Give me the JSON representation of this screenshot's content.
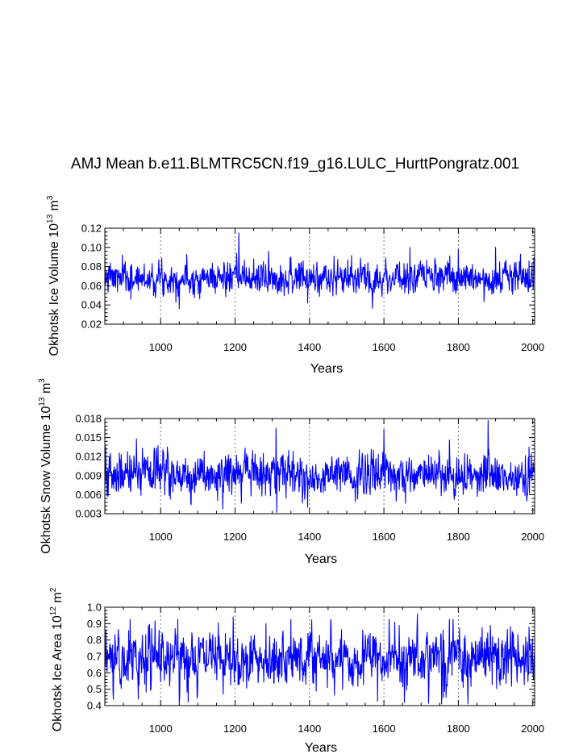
{
  "figure_title": "AMJ Mean b.e11.BLMTRC5CN.f19_g16.LULC_HurttPongratz.001",
  "chart_data": [
    {
      "type": "line",
      "title": "",
      "xlabel": "Years",
      "ylabel": "Okhotsk Ice Volume 10",
      "ylabel_exp": "13",
      "ylabel_unit": "m",
      "ylabel_unit_exp": "3",
      "xlim": [
        850,
        2005
      ],
      "ylim": [
        0.02,
        0.12
      ],
      "xticks": [
        1000,
        1200,
        1400,
        1600,
        1800,
        2000
      ],
      "xtick_labels": [
        "1000",
        "1200",
        "1400",
        "1600",
        "1800",
        "2000"
      ],
      "yticks": [
        0.02,
        0.04,
        0.06,
        0.08,
        0.1,
        0.12
      ],
      "ytick_labels": [
        "0.02",
        "0.04",
        "0.06",
        "0.08",
        "0.10",
        "0.12"
      ],
      "gridlines_x": [
        1000,
        1200,
        1400,
        1600,
        1800
      ],
      "series": [
        {
          "name": "Okhotsk Ice Volume",
          "color": "#0000ff",
          "x_start": 850,
          "x_end": 2005,
          "mean": 0.068,
          "spread": 0.008,
          "lo": 0.036,
          "hi": 0.115,
          "seed": 7,
          "keypoints": [
            [
              857,
              0.074
            ],
            [
              920,
              0.046
            ],
            [
              1050,
              0.036
            ],
            [
              1210,
              0.115
            ],
            [
              1290,
              0.096
            ],
            [
              1350,
              0.09
            ],
            [
              1395,
              0.042
            ],
            [
              1600,
              0.072
            ],
            [
              1670,
              0.1
            ],
            [
              1800,
              0.098
            ],
            [
              1900,
              0.1
            ],
            [
              1990,
              0.086
            ]
          ]
        }
      ]
    },
    {
      "type": "line",
      "title": "",
      "xlabel": "Years",
      "ylabel": "Okhotsk Snow Volume 10",
      "ylabel_exp": "13",
      "ylabel_unit": "m",
      "ylabel_unit_exp": "3",
      "xlim": [
        850,
        2005
      ],
      "ylim": [
        0.003,
        0.018
      ],
      "xticks": [
        1000,
        1200,
        1400,
        1600,
        1800,
        2000
      ],
      "xtick_labels": [
        "1000",
        "1200",
        "1400",
        "1600",
        "1800",
        "2000"
      ],
      "yticks": [
        0.003,
        0.006,
        0.009,
        0.012,
        0.015,
        0.018
      ],
      "ytick_labels": [
        "0.003",
        "0.006",
        "0.009",
        "0.012",
        "0.015",
        "0.018"
      ],
      "gridlines_x": [
        1000,
        1200,
        1400,
        1600,
        1800
      ],
      "series": [
        {
          "name": "Okhotsk Snow Volume",
          "color": "#0000ff",
          "x_start": 850,
          "x_end": 2005,
          "mean": 0.0092,
          "spread": 0.0017,
          "lo": 0.0032,
          "hi": 0.0178,
          "seed": 19,
          "keypoints": [
            [
              852,
              0.0135
            ],
            [
              935,
              0.0148
            ],
            [
              1310,
              0.0165
            ],
            [
              1312,
              0.0032
            ],
            [
              1395,
              0.004
            ],
            [
              1600,
              0.0163
            ],
            [
              1880,
              0.0177
            ],
            [
              1990,
              0.0135
            ]
          ]
        }
      ]
    },
    {
      "type": "line",
      "title": "",
      "xlabel": "Years",
      "ylabel": "Okhotsk Ice Area 10",
      "ylabel_exp": "12",
      "ylabel_unit": "m",
      "ylabel_unit_exp": "2",
      "xlim": [
        850,
        2005
      ],
      "ylim": [
        0.4,
        1.0
      ],
      "xticks": [
        1000,
        1200,
        1400,
        1600,
        1800,
        2000
      ],
      "xtick_labels": [
        "1000",
        "1200",
        "1400",
        "1600",
        "1800",
        "2000"
      ],
      "yticks": [
        0.4,
        0.5,
        0.6,
        0.7,
        0.8,
        0.9,
        1.0
      ],
      "ytick_labels": [
        "0.4",
        "0.5",
        "0.6",
        "0.7",
        "0.8",
        "0.9",
        "1.0"
      ],
      "gridlines_x": [
        1000,
        1200,
        1400,
        1600,
        1800
      ],
      "series": [
        {
          "name": "Okhotsk Ice Area",
          "color": "#0000ff",
          "x_start": 850,
          "x_end": 2005,
          "mean": 0.69,
          "spread": 0.085,
          "lo": 0.41,
          "hi": 0.96,
          "seed": 31,
          "keypoints": [
            [
              940,
              0.44
            ],
            [
              1050,
              0.42
            ],
            [
              1195,
              0.94
            ],
            [
              1655,
              0.42
            ],
            [
              1690,
              0.96
            ],
            [
              1755,
              0.41
            ],
            [
              1760,
              0.45
            ],
            [
              1990,
              0.88
            ]
          ]
        }
      ]
    }
  ]
}
